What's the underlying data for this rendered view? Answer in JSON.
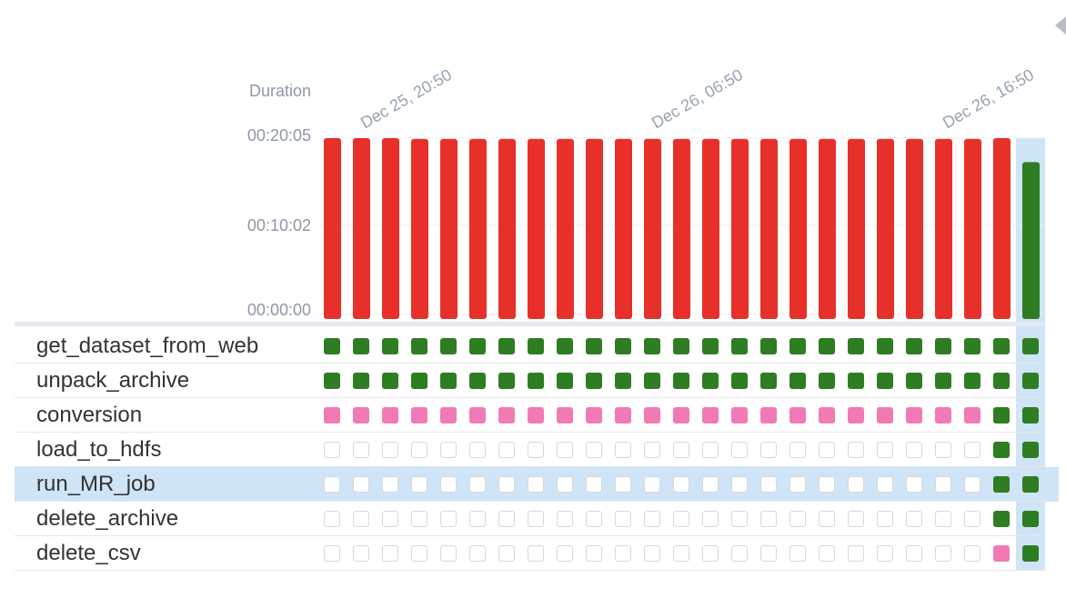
{
  "duration_label": "Duration",
  "y_ticks": [
    "00:20:05",
    "00:10:02",
    "00:00:00"
  ],
  "date_ticks": [
    "Dec 25, 20:50",
    "Dec 26, 06:50",
    "Dec 26, 16:50"
  ],
  "colors": {
    "failed": "#e8302a",
    "success": "#2e7d23",
    "upstream_failed": "#f07bb4",
    "no_status_border": "#d9d9d9",
    "selected_bg": "#cfe4f7",
    "axis_text": "#8e98a8"
  },
  "chart_data": {
    "type": "bar",
    "ylabel": "Duration",
    "runs": 25,
    "run_states": [
      "failed",
      "failed",
      "failed",
      "failed",
      "failed",
      "failed",
      "failed",
      "failed",
      "failed",
      "failed",
      "failed",
      "failed",
      "failed",
      "failed",
      "failed",
      "failed",
      "failed",
      "failed",
      "failed",
      "failed",
      "failed",
      "failed",
      "failed",
      "failed",
      "success"
    ],
    "durations_seconds": [
      1205,
      1205,
      1205,
      1200,
      1200,
      1200,
      1200,
      1200,
      1200,
      1200,
      1200,
      1200,
      1200,
      1200,
      1200,
      1200,
      1200,
      1200,
      1200,
      1200,
      1200,
      1200,
      1200,
      1205,
      1045
    ],
    "selected_run": 24
  },
  "tasks": [
    {
      "name": "get_dataset_from_web",
      "states": "SSSSSSSSSSSSSSSSSSSSSSSSS"
    },
    {
      "name": "unpack_archive",
      "states": "SSSSSSSSSSSSSSSSSSSSSSSSS"
    },
    {
      "name": "conversion",
      "states": "UUUUUUUUUUUUUUUUUUUUUUUSS"
    },
    {
      "name": "load_to_hdfs",
      "states": "NNNNNNNNNNNNNNNNNNNNNNNSS"
    },
    {
      "name": "run_MR_job",
      "states": "NNNNNNNNNNNNNNNNNNNNNNNSS",
      "selected": true
    },
    {
      "name": "delete_archive",
      "states": "NNNNNNNNNNNNNNNNNNNNNNNSS"
    },
    {
      "name": "delete_csv",
      "states": "NNNNNNNNNNNNNNNNNNNNNNNUS"
    }
  ]
}
